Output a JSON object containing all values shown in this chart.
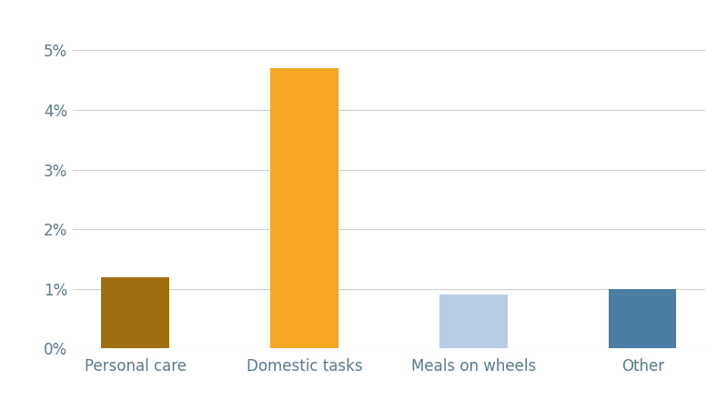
{
  "categories": [
    "Personal care",
    "Domestic tasks",
    "Meals on wheels",
    "Other"
  ],
  "values": [
    1.2,
    4.7,
    0.9,
    1.0
  ],
  "bar_colors": [
    "#A07010",
    "#F5A623",
    "#B8CCE4",
    "#4A7EA5"
  ],
  "ylim": [
    0,
    0.055
  ],
  "yticks": [
    0.0,
    0.01,
    0.02,
    0.03,
    0.04,
    0.05
  ],
  "ytick_labels": [
    "0%",
    "1%",
    "2%",
    "3%",
    "4%",
    "5%"
  ],
  "background_color": "#ffffff",
  "grid_color": "#d0d0d0",
  "tick_label_color": "#5a7a8a",
  "bar_width": 0.4,
  "figsize": [
    7.99,
    4.51
  ],
  "dpi": 100
}
